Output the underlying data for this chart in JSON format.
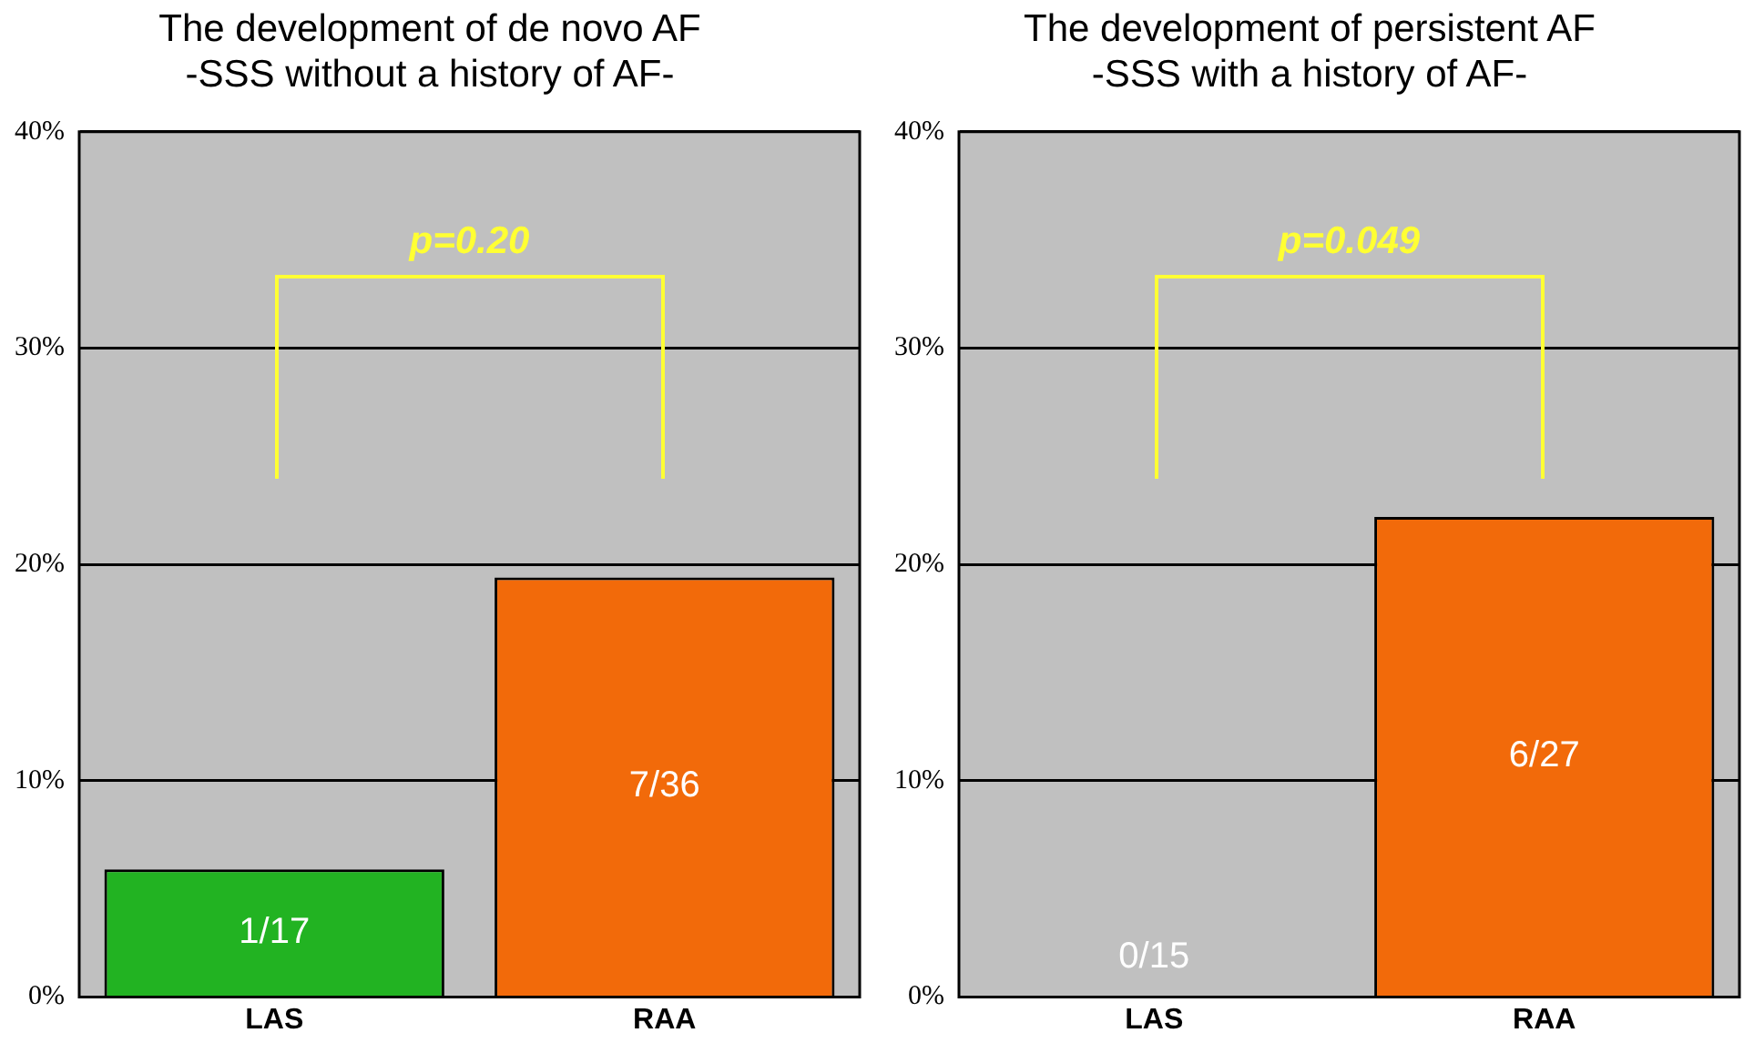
{
  "chart_data": [
    {
      "type": "bar",
      "title": "The development of de novo AF",
      "subtitle": "-SSS without a history of AF-",
      "categories": [
        "LAS",
        "RAA"
      ],
      "values": [
        5.9,
        19.4
      ],
      "colors": [
        "#22b322",
        "#f26a0a"
      ],
      "value_labels": [
        "1/17",
        "7/36"
      ],
      "ylim": [
        0,
        40
      ],
      "yticks": [
        {
          "value": 0,
          "label": "0%"
        },
        {
          "value": 10,
          "label": "10%"
        },
        {
          "value": 20,
          "label": "20%"
        },
        {
          "value": 30,
          "label": "30%"
        },
        {
          "value": 40,
          "label": "40%"
        }
      ],
      "grid": "y",
      "legend": false,
      "annotations": [
        "p=0.20"
      ]
    },
    {
      "type": "bar",
      "title": "The development of persistent AF",
      "subtitle": "-SSS with a history of AF-",
      "categories": [
        "LAS",
        "RAA"
      ],
      "values": [
        0,
        22.2
      ],
      "colors": [
        "#22b322",
        "#f26a0a"
      ],
      "value_labels": [
        "0/15",
        "6/27"
      ],
      "ylim": [
        0,
        40
      ],
      "yticks": [
        {
          "value": 0,
          "label": "0%"
        },
        {
          "value": 10,
          "label": "10%"
        },
        {
          "value": 20,
          "label": "20%"
        },
        {
          "value": 30,
          "label": "30%"
        },
        {
          "value": 40,
          "label": "40%"
        }
      ],
      "grid": "y",
      "legend": false,
      "annotations": [
        "p=0.049"
      ]
    }
  ]
}
